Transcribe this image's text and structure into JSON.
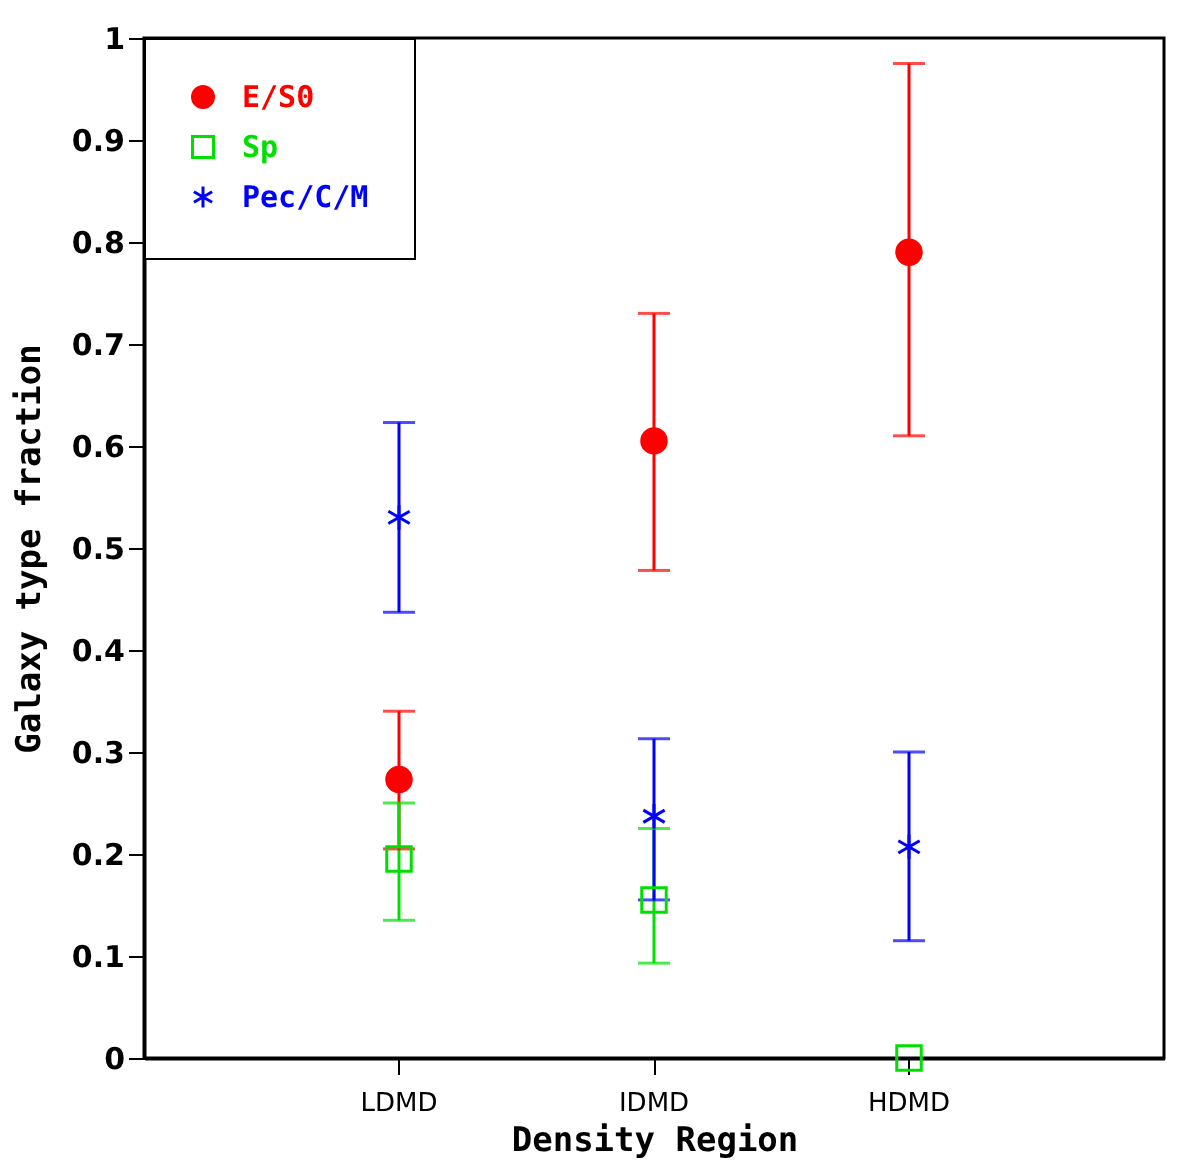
{
  "chart_data": {
    "type": "scatter",
    "xlabel": "Density Region",
    "ylabel": "Galaxy type fraction",
    "categories": [
      "LDMD",
      "IDMD",
      "HDMD"
    ],
    "series": [
      {
        "name": "E/S0",
        "color": "#ff0000",
        "marker": "circle",
        "values": [
          0.273,
          0.605,
          0.79
        ],
        "errors": [
          [
            0.205,
            0.34
          ],
          [
            0.478,
            0.73
          ],
          [
            0.61,
            0.975
          ]
        ]
      },
      {
        "name": "Sp",
        "color": "#00e000",
        "marker": "square",
        "values": [
          0.195,
          0.155,
          0
        ],
        "errors": [
          [
            0.135,
            0.25
          ],
          [
            0.093,
            0.225
          ],
          null
        ]
      },
      {
        "name": "Pec/C/M",
        "color": "#0000ff",
        "marker": "cross",
        "values": [
          0.53,
          0.237,
          0.207
        ],
        "errors": [
          [
            0.437,
            0.623
          ],
          [
            0.155,
            0.313
          ],
          [
            0.115,
            0.3
          ]
        ]
      }
    ],
    "ylim": [
      0,
      1
    ],
    "yticks": [
      0,
      0.1,
      0.2,
      0.3,
      0.4,
      0.5,
      0.6,
      0.7,
      0.8,
      0.9,
      1
    ],
    "legend": "top left",
    "grid": false
  }
}
